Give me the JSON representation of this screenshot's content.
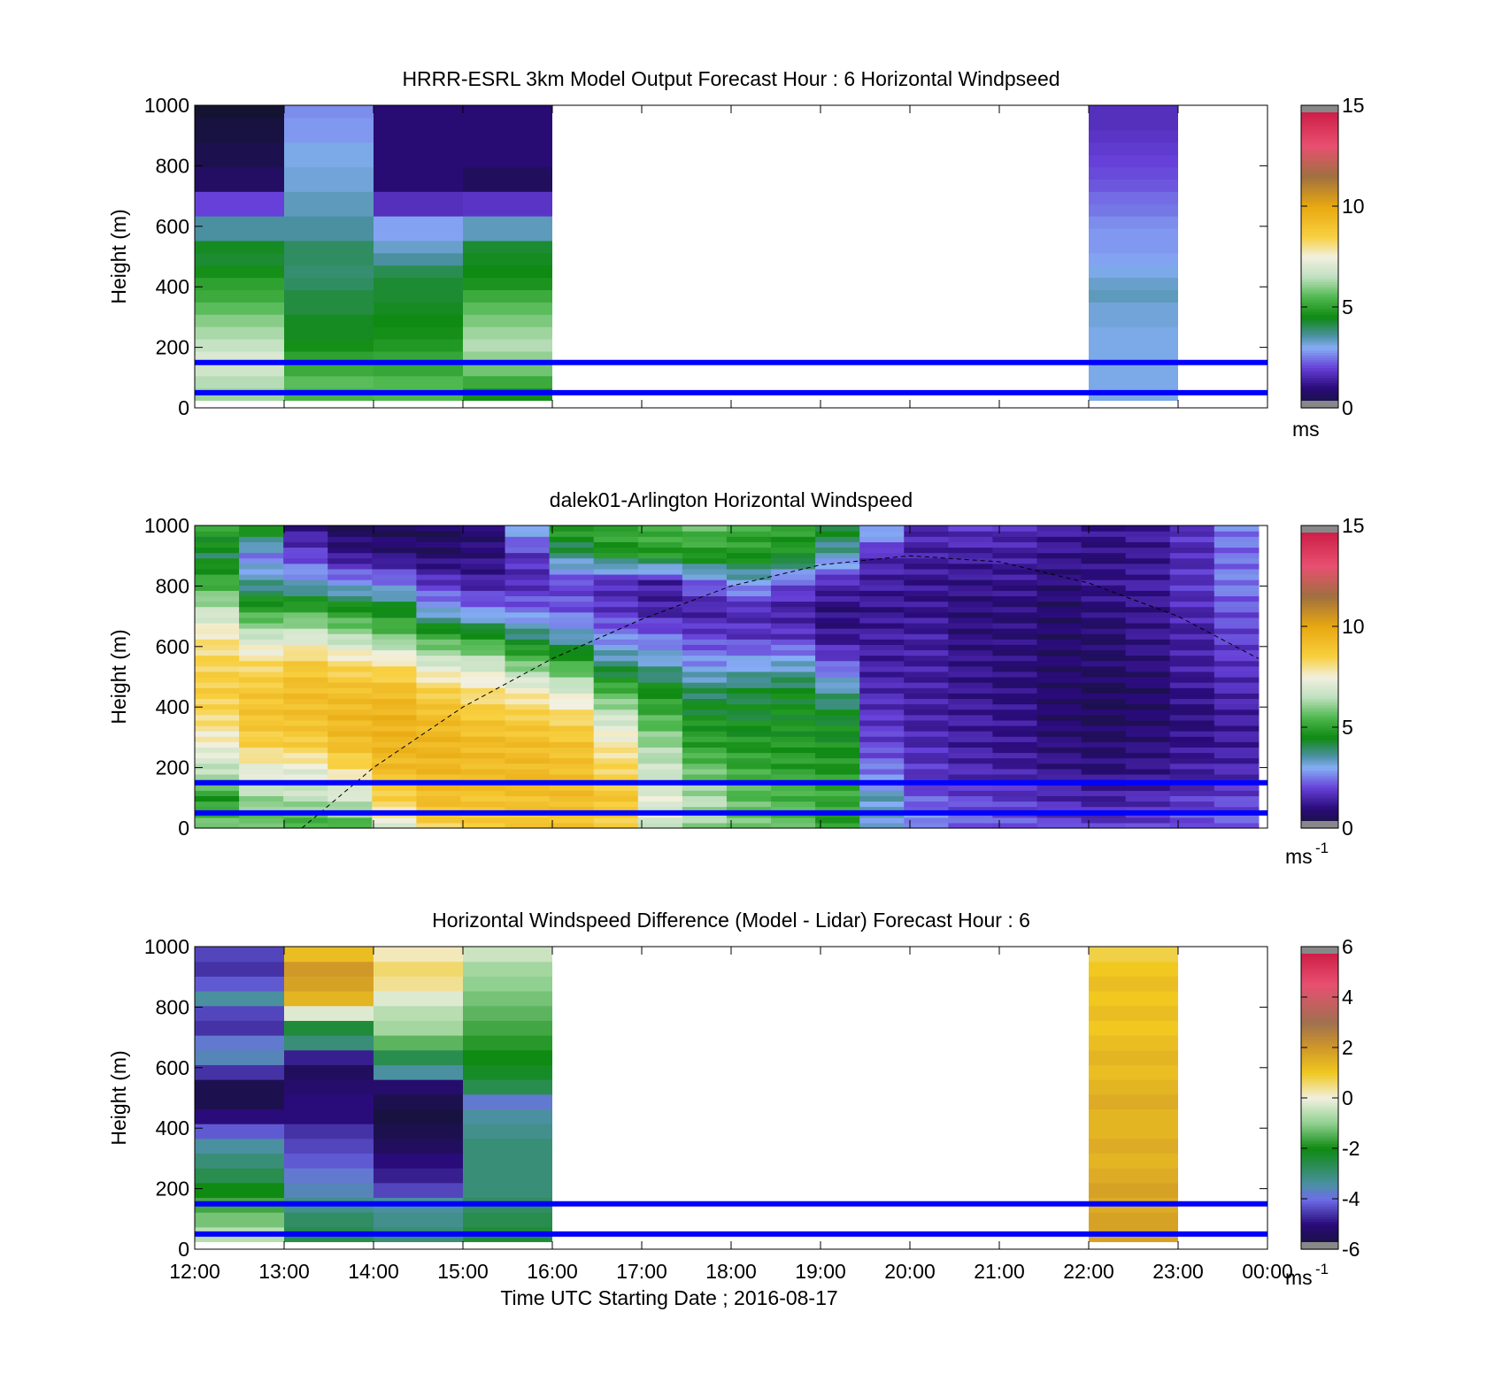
{
  "chart_data": [
    {
      "type": "heatmap",
      "title": "HRRR-ESRL 3km Model Output   Forecast Hour : 6 Horizontal Windpseed",
      "ylabel": "Height (m)",
      "xlabel": "",
      "ylim": [
        0,
        1000
      ],
      "xlim": [
        12,
        24
      ],
      "y_ticks": [
        "0",
        "200",
        "400",
        "600",
        "800",
        "1000"
      ],
      "colorbar": {
        "ticks": [
          "0",
          "5",
          "10",
          "15"
        ],
        "range": [
          0,
          15
        ],
        "unit": "ms",
        "unit_sup": "",
        "scheme": "speed"
      },
      "hlines": [
        50,
        150
      ],
      "columns": [
        {
          "start": 12,
          "end": 13,
          "bottom": 25,
          "top": 1000,
          "values": [
            6.2,
            6.4,
            6.8,
            7.0,
            6.6,
            6.3,
            6.0,
            5.6,
            5.2,
            5.0,
            4.6,
            4.3,
            4.4,
            3.6,
            3.6,
            2.0,
            2.0,
            0.7,
            0.7,
            0.4,
            0.4,
            0.2,
            0.2,
            0.0
          ]
        },
        {
          "start": 13,
          "end": 14,
          "bottom": 25,
          "top": 1000,
          "values": [
            5.4,
            5.6,
            5.2,
            5.0,
            4.6,
            4.4,
            4.4,
            4.2,
            4.2,
            4.0,
            3.9,
            4.0,
            4.0,
            3.6,
            3.6,
            3.4,
            3.4,
            3.2,
            3.2,
            3.1,
            3.1,
            2.8,
            2.8,
            2.7
          ]
        },
        {
          "start": 14,
          "end": 15,
          "bottom": 25,
          "top": 1000,
          "values": [
            5.5,
            5.5,
            5.1,
            5.1,
            4.8,
            4.6,
            4.5,
            4.4,
            4.3,
            4.3,
            4.1,
            3.6,
            3.3,
            2.9,
            2.9,
            1.7,
            1.7,
            0.9,
            0.9,
            0.9,
            0.9,
            0.9,
            0.9,
            0.9
          ]
        },
        {
          "start": 15,
          "end": 16,
          "bottom": 25,
          "top": 1000,
          "values": [
            4.6,
            5.2,
            5.8,
            6.1,
            6.4,
            6.2,
            5.9,
            5.6,
            5.2,
            4.7,
            4.5,
            4.4,
            4.3,
            3.4,
            3.4,
            1.8,
            1.8,
            0.6,
            0.6,
            0.9,
            0.9,
            0.9,
            0.9,
            0.9
          ]
        },
        {
          "start": 22,
          "end": 23,
          "bottom": 25,
          "top": 1000,
          "values": [
            3.1,
            3.1,
            3.1,
            3.1,
            3.1,
            3.1,
            3.2,
            3.2,
            3.4,
            3.3,
            3.1,
            2.9,
            2.8,
            2.8,
            2.7,
            2.5,
            2.4,
            2.2,
            2.1,
            2.0,
            1.9,
            1.8,
            1.7,
            1.7
          ]
        }
      ]
    },
    {
      "type": "heatmap",
      "title": "dalek01-Arlington  Horizontal Windspeed",
      "ylabel": "Height (m)",
      "xlabel": "",
      "ylim": [
        0,
        1000
      ],
      "xlim": [
        12,
        24
      ],
      "y_ticks": [
        "0",
        "200",
        "400",
        "600",
        "800",
        "1000"
      ],
      "colorbar": {
        "ticks": [
          "0",
          "5",
          "10",
          "15"
        ],
        "range": [
          0,
          15
        ],
        "unit": "ms",
        "unit_sup": "-1",
        "scheme": "speed"
      },
      "hlines": [
        50,
        150
      ],
      "overlay_curve": {
        "style": "dashed",
        "points": [
          [
            13.2,
            0
          ],
          [
            14.0,
            200
          ],
          [
            15.0,
            400
          ],
          [
            16.0,
            560
          ],
          [
            17.0,
            690
          ],
          [
            18.0,
            800
          ],
          [
            19.0,
            870
          ],
          [
            20.0,
            900
          ],
          [
            21.0,
            880
          ],
          [
            22.0,
            810
          ],
          [
            23.0,
            700
          ],
          [
            23.9,
            560
          ]
        ]
      },
      "grid": {
        "x_start": 12,
        "x_end": 23.9,
        "y_bottom": 0,
        "y_top": 1000,
        "profiles": [
          {
            "x": 12.0,
            "v": [
              5.8,
              4.8,
              6.5,
              7.5,
              8.2,
              8.6,
              8.4,
              7.9,
              6.6,
              5.2,
              4.2,
              5.0
            ]
          },
          {
            "x": 12.5,
            "v": [
              5.6,
              6.2,
              7.2,
              8.5,
              9.0,
              8.8,
              8.2,
              6.8,
              5.0,
              3.6,
              2.6,
              4.8
            ]
          },
          {
            "x": 13.0,
            "v": [
              5.2,
              6.5,
              7.2,
              8.6,
              9.1,
              9.2,
              8.7,
              7.0,
              5.2,
              3.2,
              2.0,
              1.2
            ]
          },
          {
            "x": 13.5,
            "v": [
              5.4,
              6.8,
              8.0,
              9.2,
              9.4,
              9.1,
              8.2,
              6.4,
              4.8,
              2.8,
              1.2,
              0.6
            ]
          },
          {
            "x": 14.0,
            "v": [
              7.2,
              8.5,
              9.2,
              9.5,
              9.6,
              9.2,
              8.0,
              5.8,
              4.5,
              2.6,
              1.0,
              0.6
            ]
          },
          {
            "x": 14.5,
            "v": [
              8.5,
              9.2,
              9.4,
              9.5,
              9.2,
              8.5,
              7.0,
              5.2,
              3.0,
              1.8,
              0.8,
              0.6
            ]
          },
          {
            "x": 15.0,
            "v": [
              8.6,
              9.0,
              9.2,
              9.3,
              8.8,
              8.0,
              6.8,
              4.8,
              2.6,
              1.4,
              1.0,
              0.8
            ]
          },
          {
            "x": 15.5,
            "v": [
              8.8,
              9.1,
              9.3,
              9.2,
              8.6,
              7.6,
              5.8,
              4.0,
              2.4,
              1.6,
              1.8,
              3.0
            ]
          },
          {
            "x": 16.0,
            "v": [
              8.9,
              9.2,
              9.1,
              9.0,
              8.3,
              7.0,
              5.2,
              3.4,
              2.2,
              2.0,
              3.8,
              5.0
            ]
          },
          {
            "x": 16.5,
            "v": [
              8.6,
              8.9,
              8.4,
              7.8,
              6.8,
              5.4,
              3.8,
              2.6,
              1.8,
              1.6,
              4.6,
              5.2
            ]
          },
          {
            "x": 17.0,
            "v": [
              6.8,
              7.2,
              6.8,
              6.2,
              5.4,
              4.6,
              3.4,
              2.4,
              1.4,
              1.4,
              4.8,
              5.4
            ]
          },
          {
            "x": 17.5,
            "v": [
              6.2,
              6.4,
              5.8,
              5.0,
              4.6,
              4.0,
              2.8,
              2.0,
              1.4,
              2.4,
              4.8,
              5.6
            ]
          },
          {
            "x": 18.0,
            "v": [
              5.8,
              5.6,
              5.2,
              4.8,
              4.4,
              4.2,
              3.0,
              1.8,
              1.6,
              3.0,
              4.8,
              5.2
            ]
          },
          {
            "x": 18.5,
            "v": [
              5.6,
              5.4,
              5.0,
              4.8,
              4.6,
              4.4,
              3.2,
              1.8,
              1.4,
              2.2,
              4.6,
              5.0
            ]
          },
          {
            "x": 19.0,
            "v": [
              4.8,
              5.2,
              4.8,
              4.6,
              4.4,
              3.6,
              2.2,
              1.2,
              1.0,
              1.6,
              3.4,
              4.4
            ]
          },
          {
            "x": 19.5,
            "v": [
              3.2,
              3.4,
              2.6,
              2.0,
              1.8,
              1.6,
              1.4,
              1.4,
              1.2,
              1.4,
              1.6,
              3.2
            ]
          },
          {
            "x": 20.0,
            "v": [
              2.8,
              2.2,
              1.8,
              1.6,
              1.4,
              1.4,
              1.4,
              1.4,
              1.2,
              1.2,
              1.4,
              1.6
            ]
          },
          {
            "x": 20.5,
            "v": [
              2.4,
              2.0,
              1.6,
              1.4,
              1.4,
              1.2,
              1.2,
              1.0,
              1.0,
              1.2,
              1.4,
              1.8
            ]
          },
          {
            "x": 21.0,
            "v": [
              2.2,
              1.8,
              1.4,
              1.2,
              1.2,
              1.0,
              1.0,
              1.0,
              1.0,
              1.2,
              1.4,
              1.6
            ]
          },
          {
            "x": 21.5,
            "v": [
              2.0,
              1.6,
              1.2,
              1.0,
              0.8,
              0.8,
              0.8,
              0.8,
              0.8,
              1.0,
              1.2,
              1.4
            ]
          },
          {
            "x": 22.0,
            "v": [
              1.8,
              1.4,
              1.0,
              0.8,
              0.6,
              0.6,
              0.8,
              0.8,
              1.0,
              1.2,
              1.0,
              1.2
            ]
          },
          {
            "x": 22.5,
            "v": [
              2.0,
              1.6,
              1.2,
              1.0,
              0.8,
              0.8,
              1.0,
              1.2,
              1.2,
              1.4,
              1.2,
              1.4
            ]
          },
          {
            "x": 23.0,
            "v": [
              2.2,
              1.8,
              1.4,
              1.2,
              1.0,
              1.2,
              1.4,
              1.4,
              1.6,
              1.8,
              1.6,
              1.8
            ]
          },
          {
            "x": 23.5,
            "v": [
              2.4,
              2.0,
              1.6,
              1.4,
              1.4,
              1.6,
              1.8,
              2.0,
              2.2,
              2.6,
              2.4,
              2.6
            ]
          }
        ]
      }
    },
    {
      "type": "heatmap",
      "title": "Horizontal Windspeed Difference (Model - Lidar) Forecast Hour : 6",
      "ylabel": "Height (m)",
      "xlabel": "Time UTC  Starting Date ; 2016-08-17",
      "ylim": [
        0,
        1000
      ],
      "xlim": [
        12,
        24
      ],
      "x_ticks": [
        "12:00",
        "13:00",
        "14:00",
        "15:00",
        "16:00",
        "17:00",
        "18:00",
        "19:00",
        "20:00",
        "21:00",
        "22:00",
        "23:00",
        "00:00"
      ],
      "y_ticks": [
        "0",
        "200",
        "400",
        "600",
        "800",
        "1000"
      ],
      "colorbar": {
        "ticks": [
          "-6",
          "-4",
          "-2",
          "0",
          "2",
          "4",
          "6"
        ],
        "range": [
          -6,
          6
        ],
        "unit": "ms",
        "unit_sup": "-1",
        "scheme": "diff"
      },
      "hlines": [
        50,
        150
      ],
      "columns": [
        {
          "start": 12,
          "end": 13,
          "bottom": 25,
          "top": 1000,
          "values": [
            -0.6,
            -1.2,
            -1.6,
            -2.0,
            -2.6,
            -3.0,
            -3.4,
            -4.2,
            -5.0,
            -5.6,
            -5.6,
            -4.6,
            -3.6,
            -3.8,
            -4.6,
            -4.4,
            -3.4,
            -4.2,
            -4.6,
            -4.4
          ]
        },
        {
          "start": 13,
          "end": 14,
          "bottom": 25,
          "top": 1000,
          "values": [
            -2.6,
            -2.8,
            -3.2,
            -3.6,
            -3.8,
            -4.2,
            -4.4,
            -4.6,
            -5.0,
            -5.0,
            -5.2,
            -5.4,
            -4.8,
            -3.0,
            -2.4,
            -0.2,
            1.4,
            1.8,
            2.0,
            1.2
          ]
        },
        {
          "start": 14,
          "end": 15,
          "bottom": 25,
          "top": 1000,
          "values": [
            -3.0,
            -3.2,
            -3.4,
            -4.4,
            -4.8,
            -5.0,
            -5.4,
            -5.6,
            -5.8,
            -5.6,
            -5.2,
            -3.4,
            -2.6,
            -1.4,
            -0.8,
            -0.6,
            -0.2,
            0.4,
            0.6,
            0.2
          ]
        },
        {
          "start": 15,
          "end": 16,
          "bottom": 25,
          "top": 1000,
          "values": [
            -2.4,
            -2.6,
            -2.8,
            -3.0,
            -3.0,
            -3.0,
            -3.0,
            -3.2,
            -3.4,
            -3.8,
            -2.6,
            -2.2,
            -2.0,
            -1.8,
            -1.6,
            -1.4,
            -1.2,
            -1.0,
            -0.8,
            -0.4
          ]
        },
        {
          "start": 22,
          "end": 23,
          "bottom": 25,
          "top": 1000,
          "values": [
            1.8,
            1.8,
            1.6,
            1.8,
            1.6,
            1.4,
            1.6,
            1.4,
            1.4,
            1.6,
            1.4,
            1.2,
            1.4,
            1.2,
            1.0,
            1.2,
            1.0,
            1.2,
            1.0,
            0.8
          ]
        }
      ]
    }
  ]
}
